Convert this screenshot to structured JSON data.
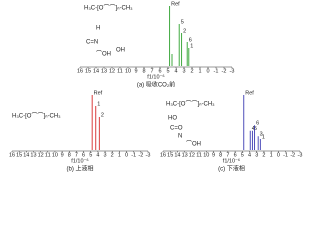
{
  "chart_data": [
    {
      "type": "stem",
      "caption": "(a) 吸收CO₂前",
      "xlabel": "f1/10⁻⁶",
      "color": "#2ca02c",
      "xlim": [
        16,
        -3
      ],
      "ylim": [
        0,
        100
      ],
      "xticks": [
        16,
        15,
        14,
        13,
        12,
        11,
        10,
        9,
        8,
        7,
        6,
        5,
        4,
        3,
        2,
        1,
        0,
        -1,
        -2,
        -3
      ],
      "x": [
        4.8,
        4.5,
        3.6,
        3.3,
        2.6,
        2.4
      ],
      "values": [
        100,
        20,
        70,
        55,
        40,
        30
      ],
      "peak_labels": [
        "Ref",
        null,
        "5",
        "2",
        "6",
        "1"
      ],
      "structure": [
        "H₃C-[O⌒⌒]ₙ-CH₃",
        "H",
        "C=N",
        "⌒OH",
        "OH"
      ]
    },
    {
      "type": "stem",
      "caption": "(b) 上液相",
      "xlabel": "f1/10⁻⁶",
      "color": "#d62728",
      "xlim": [
        16,
        -3
      ],
      "ylim": [
        0,
        100
      ],
      "xticks": [
        16,
        15,
        14,
        13,
        12,
        11,
        10,
        9,
        8,
        7,
        6,
        5,
        4,
        3,
        2,
        1,
        0,
        -1,
        -2,
        -3
      ],
      "x": [
        4.8,
        4.3,
        3.8
      ],
      "values": [
        100,
        80,
        60
      ],
      "peak_labels": [
        "Ref",
        "1",
        "2"
      ],
      "structure": [
        "H₃C-[O⌒⌒]ₙ-CH₃"
      ]
    },
    {
      "type": "stem",
      "caption": "(c) 下液相",
      "xlabel": "f1/10⁻⁶",
      "color": "#3b3bb3",
      "xlim": [
        16,
        -3
      ],
      "ylim": [
        0,
        100
      ],
      "xticks": [
        16,
        15,
        14,
        13,
        12,
        11,
        10,
        9,
        8,
        7,
        6,
        5,
        4,
        3,
        2,
        1,
        0,
        -1,
        -2,
        -3
      ],
      "x": [
        4.8,
        3.9,
        3.6,
        3.3,
        2.8,
        2.5
      ],
      "values": [
        100,
        35,
        35,
        45,
        25,
        20
      ],
      "peak_labels": [
        "Ref",
        "4",
        "5",
        "6",
        "3",
        "1"
      ],
      "structure": [
        "H₃C-[O⌒⌒]ₙ-CH₃",
        "HO",
        "C=O",
        "N",
        "⌒OH"
      ]
    }
  ]
}
